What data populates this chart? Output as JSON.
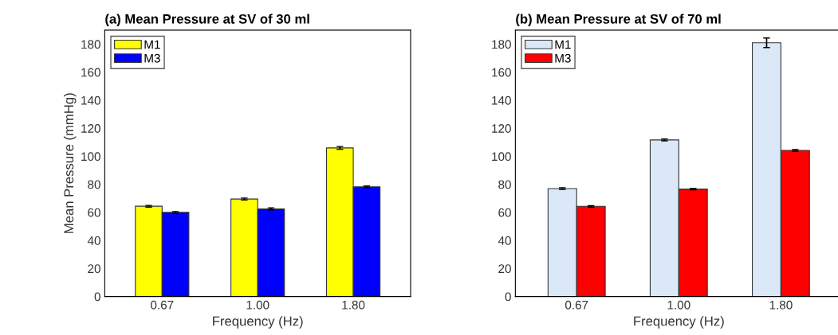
{
  "chart_data": [
    {
      "type": "bar",
      "title": "(a) Mean Pressure at SV of 30 ml",
      "xlabel": "Frequency (Hz)",
      "ylabel": "Mean Pressure (mmHg)",
      "categories": [
        "0.67",
        "1.00",
        "1.80"
      ],
      "ylim": [
        0,
        190
      ],
      "yticks": [
        0,
        20,
        40,
        60,
        80,
        100,
        120,
        140,
        160,
        180
      ],
      "legend": "top left",
      "grid": false,
      "series": [
        {
          "name": "M1",
          "color": "#ffff00",
          "values": [
            64.4,
            69.5,
            106
          ],
          "errors": [
            0.6,
            0.7,
            1
          ]
        },
        {
          "name": "M3",
          "color": "#0000ff",
          "values": [
            60,
            62.5,
            78.2
          ],
          "errors": [
            0.6,
            0.8,
            0.6
          ]
        }
      ]
    },
    {
      "type": "bar",
      "title": "(b) Mean Pressure at SV of 70 ml",
      "xlabel": "Frequency (Hz)",
      "categories": [
        "0.67",
        "1.00",
        "1.80"
      ],
      "ylim": [
        0,
        190
      ],
      "yticks": [
        0,
        20,
        40,
        60,
        80,
        100,
        120,
        140,
        160,
        180
      ],
      "legend": "top left",
      "grid": false,
      "series": [
        {
          "name": "M1",
          "color": "#dbe8f8",
          "values": [
            77,
            111.7,
            181
          ],
          "errors": [
            0.6,
            0.7,
            3.4
          ]
        },
        {
          "name": "M3",
          "color": "#ff0000",
          "values": [
            64.3,
            76.6,
            104.2
          ],
          "errors": [
            0.5,
            0.5,
            0.6
          ]
        }
      ]
    }
  ]
}
